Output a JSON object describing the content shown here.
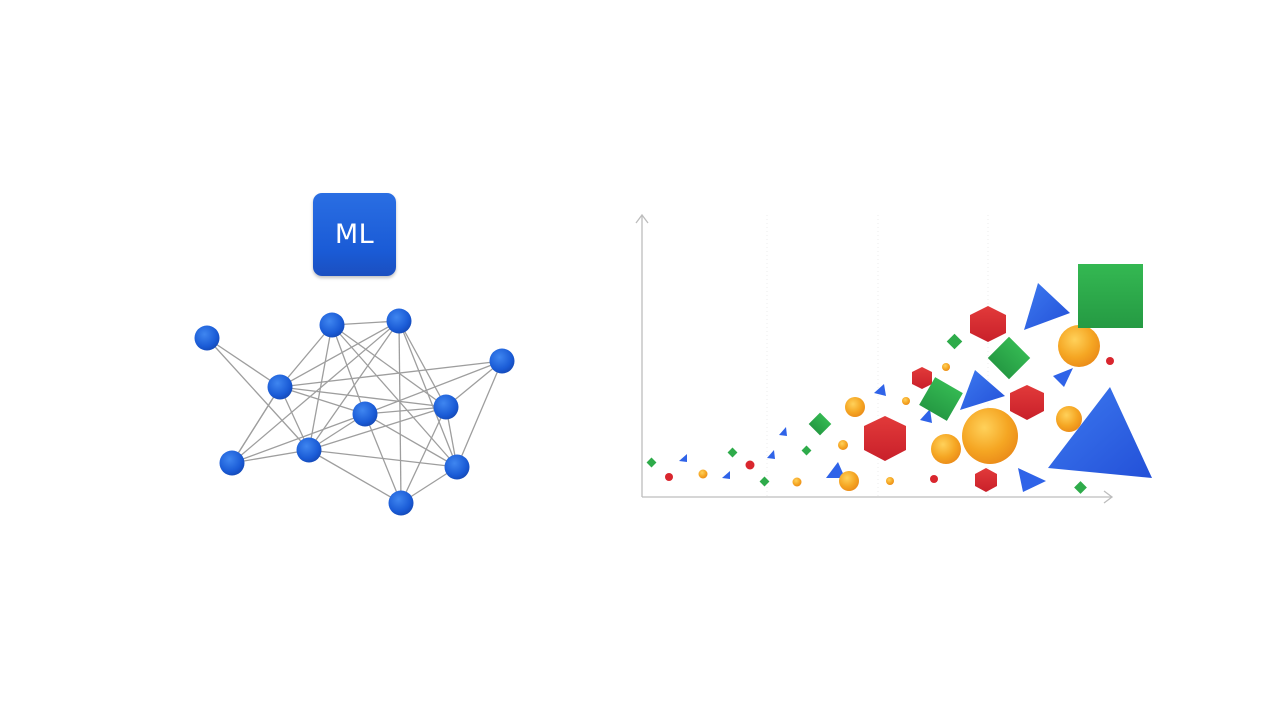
{
  "badge": {
    "label": "ML",
    "color": "#1a5bd6"
  },
  "network": {
    "node_color": "#1a5bd6",
    "edge_color": "#9e9e9e",
    "node_count": 12
  },
  "plot": {
    "axis_color": "#bdbdbd",
    "shape_colors": {
      "blue": "#2f63e8",
      "red": "#d9262e",
      "green": "#2eab4a",
      "orange": "#f3a323"
    }
  }
}
